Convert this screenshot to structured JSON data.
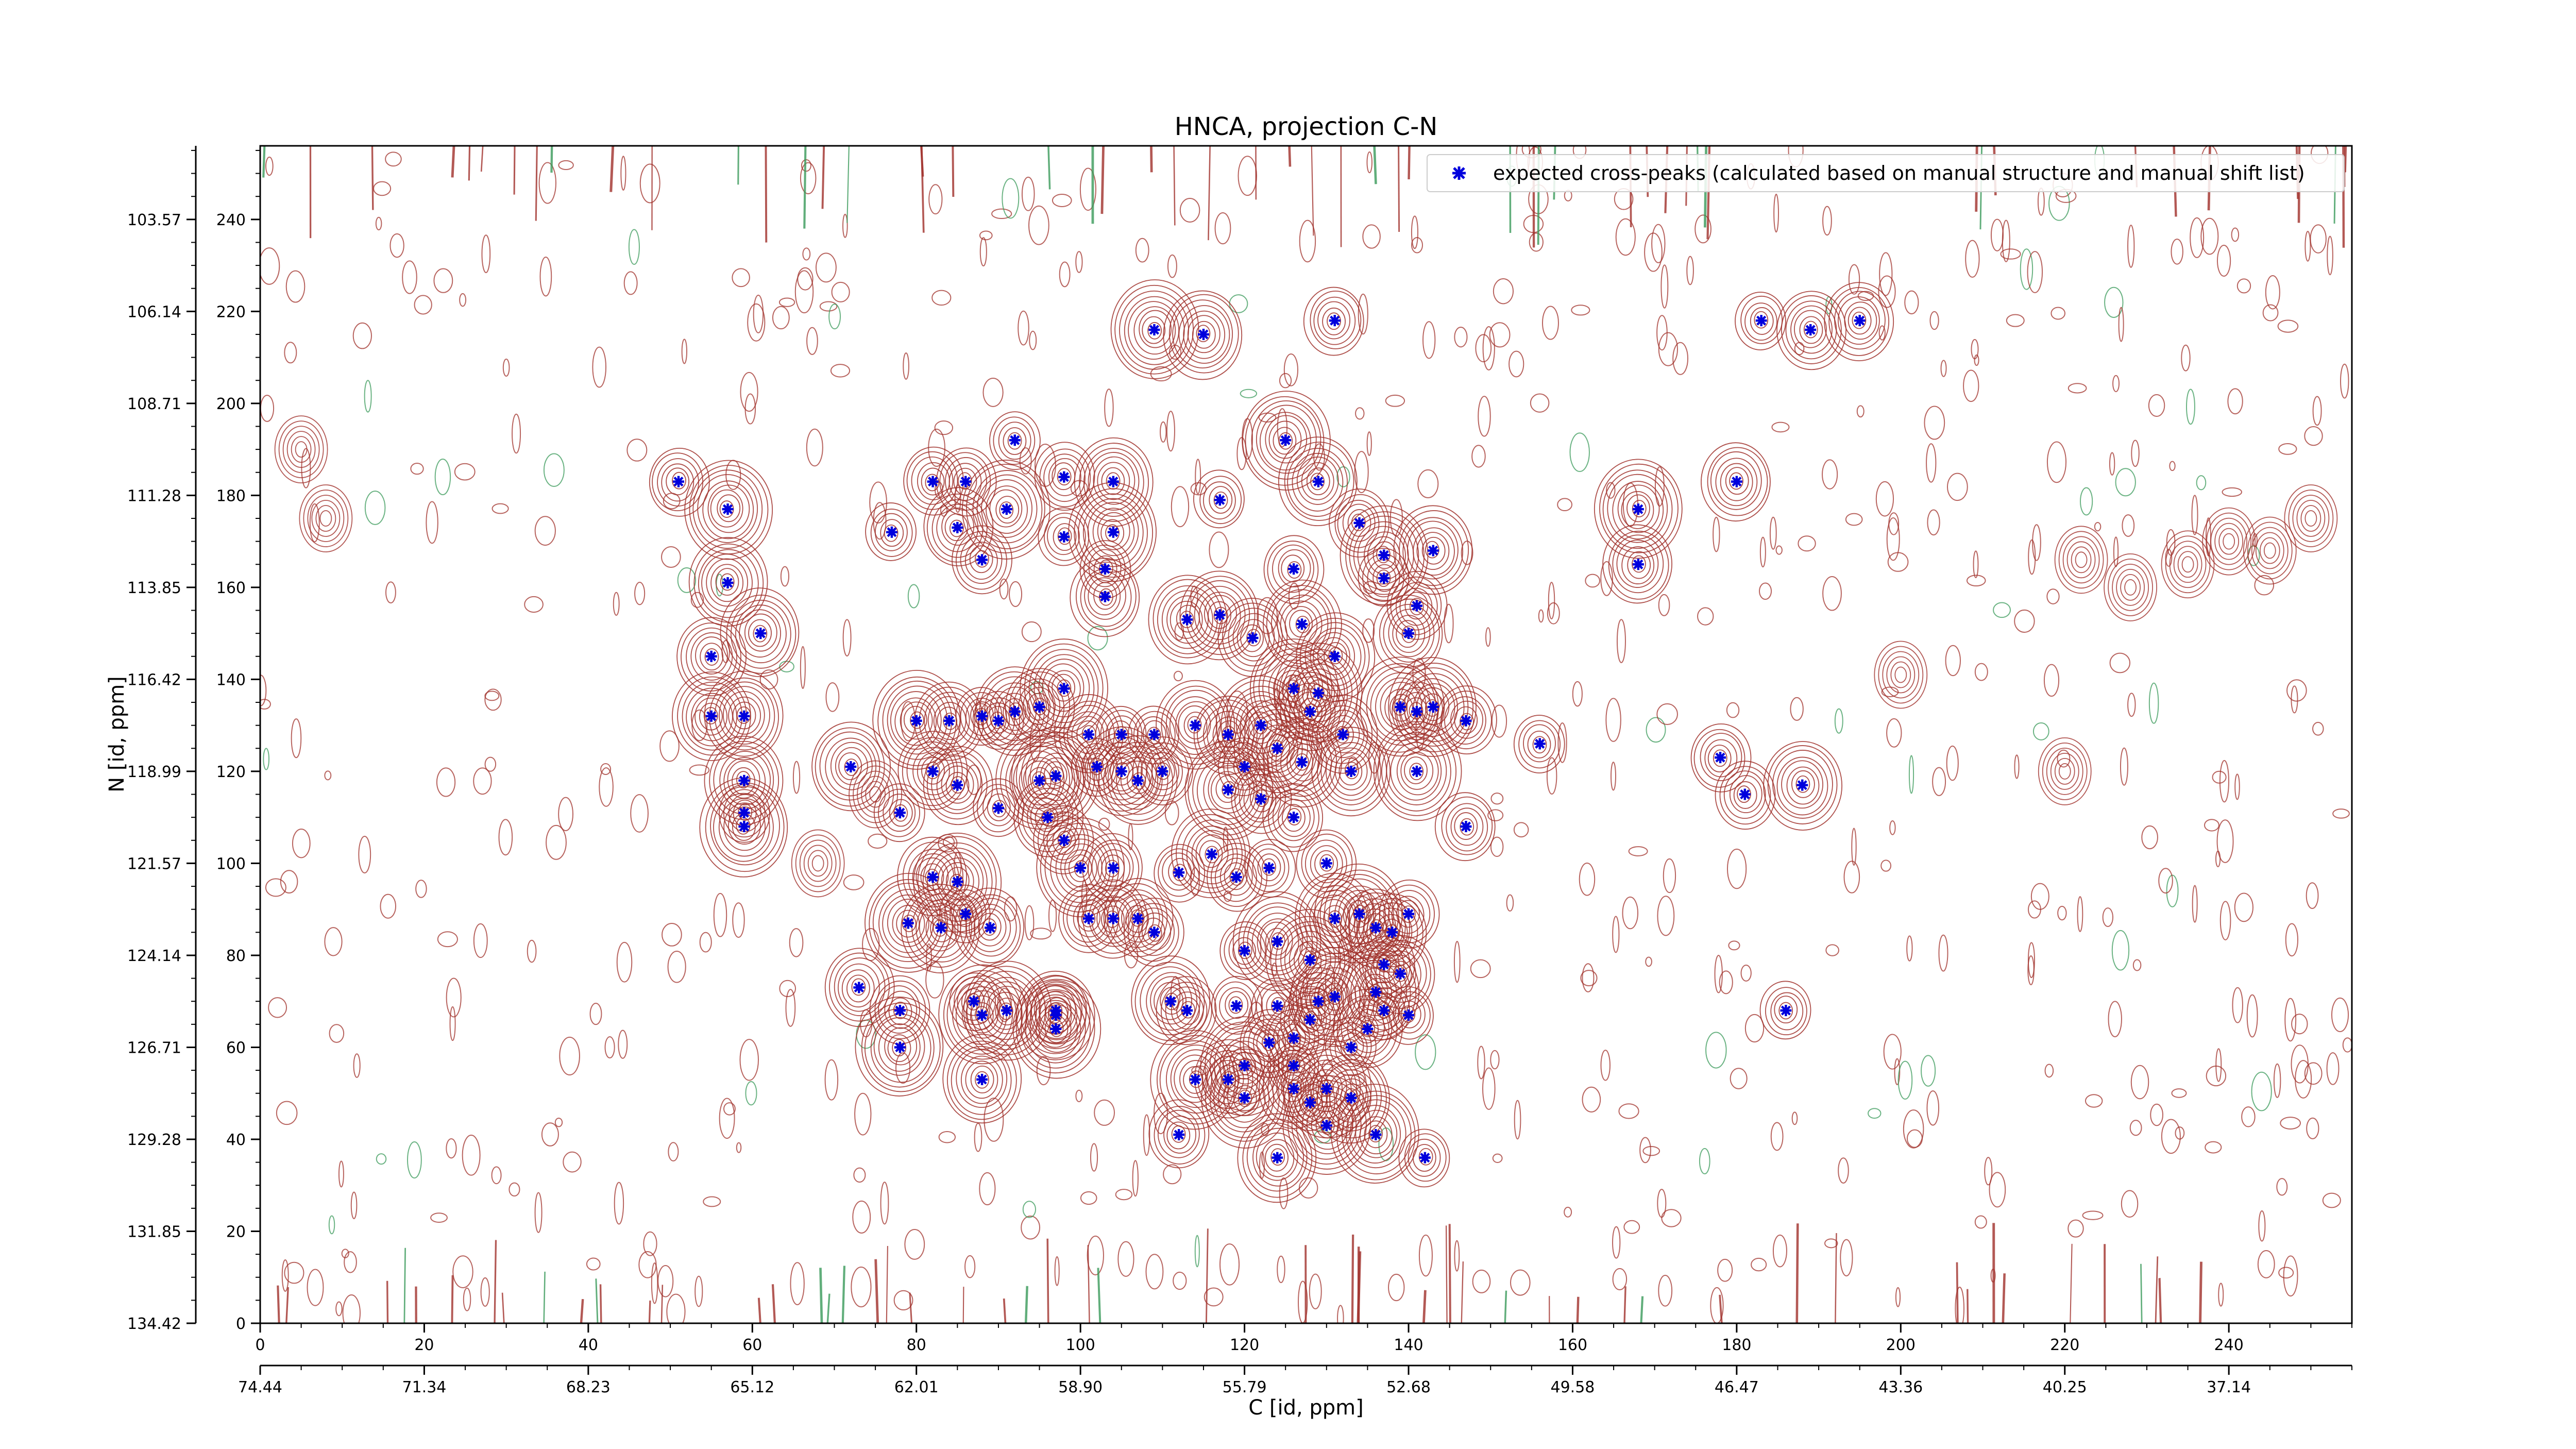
{
  "chart_data": {
    "type": "scatter",
    "title": "HNCA, projection C-N",
    "xlabel": "C [id, ppm]",
    "ylabel": "N [id, ppm]",
    "x_index_ticks": [
      0,
      20,
      40,
      60,
      80,
      100,
      120,
      140,
      160,
      180,
      200,
      220,
      240
    ],
    "x_ppm_ticks": [
      "74.44",
      "71.34",
      "68.23",
      "65.12",
      "62.01",
      "58.90",
      "55.79",
      "52.68",
      "49.58",
      "46.47",
      "43.36",
      "40.25",
      "37.14"
    ],
    "y_index_ticks": [
      0,
      20,
      40,
      60,
      80,
      100,
      120,
      140,
      160,
      180,
      200,
      220,
      240
    ],
    "y_ppm_ticks": [
      "134.42",
      "131.85",
      "129.28",
      "126.71",
      "124.14",
      "121.57",
      "118.99",
      "116.42",
      "113.85",
      "111.28",
      "108.71",
      "106.14",
      "103.57"
    ],
    "xlim": [
      0,
      255
    ],
    "ylim": [
      0,
      256
    ],
    "legend": {
      "label": "expected cross-peaks (calculated based on manual structure and manual shift list)",
      "placement": "top-right",
      "color": "#0000dd"
    },
    "colors": {
      "positive_contour": "#a0302a",
      "negative_contour": "#3a9a5a",
      "peak_marker": "#0000dd"
    },
    "series": [
      {
        "name": "expected cross-peaks (calculated based on manual structure and manual shift list)",
        "points": [
          [
            51,
            183
          ],
          [
            57,
            177
          ],
          [
            57,
            161
          ],
          [
            55,
            145
          ],
          [
            61,
            150
          ],
          [
            55,
            132
          ],
          [
            59,
            132
          ],
          [
            59,
            118
          ],
          [
            59,
            111
          ],
          [
            59,
            108
          ],
          [
            77,
            172
          ],
          [
            82,
            183
          ],
          [
            85,
            173
          ],
          [
            86,
            183
          ],
          [
            88,
            166
          ],
          [
            91,
            177
          ],
          [
            92,
            192
          ],
          [
            98,
            184
          ],
          [
            104,
            183
          ],
          [
            98,
            171
          ],
          [
            104,
            172
          ],
          [
            103,
            164
          ],
          [
            103,
            158
          ],
          [
            95,
            134
          ],
          [
            98,
            138
          ],
          [
            92,
            133
          ],
          [
            90,
            131
          ],
          [
            88,
            132
          ],
          [
            84,
            131
          ],
          [
            80,
            131
          ],
          [
            72,
            121
          ],
          [
            78,
            111
          ],
          [
            82,
            120
          ],
          [
            85,
            117
          ],
          [
            90,
            112
          ],
          [
            97,
            119
          ],
          [
            101,
            128
          ],
          [
            105,
            128
          ],
          [
            109,
            128
          ],
          [
            102,
            121
          ],
          [
            105,
            120
          ],
          [
            107,
            118
          ],
          [
            110,
            120
          ],
          [
            114,
            130
          ],
          [
            118,
            128
          ],
          [
            122,
            130
          ],
          [
            109,
            216
          ],
          [
            115,
            215
          ],
          [
            131,
            218
          ],
          [
            117,
            179
          ],
          [
            125,
            192
          ],
          [
            129,
            183
          ],
          [
            113,
            153
          ],
          [
            117,
            154
          ],
          [
            121,
            149
          ],
          [
            127,
            152
          ],
          [
            131,
            145
          ],
          [
            126,
            164
          ],
          [
            134,
            174
          ],
          [
            137,
            162
          ],
          [
            141,
            156
          ],
          [
            143,
            168
          ],
          [
            137,
            167
          ],
          [
            140,
            150
          ],
          [
            139,
            134
          ],
          [
            143,
            134
          ],
          [
            132,
            128
          ],
          [
            128,
            133
          ],
          [
            126,
            138
          ],
          [
            129,
            137
          ],
          [
            127,
            122
          ],
          [
            124,
            125
          ],
          [
            120,
            121
          ],
          [
            118,
            116
          ],
          [
            122,
            114
          ],
          [
            126,
            110
          ],
          [
            130,
            100
          ],
          [
            123,
            99
          ],
          [
            119,
            97
          ],
          [
            116,
            102
          ],
          [
            112,
            98
          ],
          [
            104,
            99
          ],
          [
            100,
            99
          ],
          [
            98,
            105
          ],
          [
            96,
            110
          ],
          [
            95,
            118
          ],
          [
            82,
            97
          ],
          [
            85,
            96
          ],
          [
            79,
            87
          ],
          [
            83,
            86
          ],
          [
            86,
            89
          ],
          [
            89,
            86
          ],
          [
            73,
            73
          ],
          [
            78,
            68
          ],
          [
            87,
            70
          ],
          [
            88,
            67
          ],
          [
            91,
            68
          ],
          [
            97,
            68
          ],
          [
            97,
            67
          ],
          [
            97,
            64
          ],
          [
            78,
            60
          ],
          [
            88,
            53
          ],
          [
            101,
            88
          ],
          [
            104,
            88
          ],
          [
            107,
            88
          ],
          [
            109,
            85
          ],
          [
            111,
            70
          ],
          [
            113,
            68
          ],
          [
            119,
            69
          ],
          [
            124,
            69
          ],
          [
            120,
            81
          ],
          [
            124,
            83
          ],
          [
            128,
            79
          ],
          [
            131,
            88
          ],
          [
            134,
            89
          ],
          [
            136,
            86
          ],
          [
            138,
            85
          ],
          [
            140,
            89
          ],
          [
            137,
            78
          ],
          [
            139,
            76
          ],
          [
            136,
            72
          ],
          [
            137,
            68
          ],
          [
            131,
            71
          ],
          [
            129,
            70
          ],
          [
            128,
            66
          ],
          [
            126,
            62
          ],
          [
            123,
            61
          ],
          [
            120,
            56
          ],
          [
            118,
            53
          ],
          [
            114,
            53
          ],
          [
            120,
            49
          ],
          [
            126,
            51
          ],
          [
            130,
            51
          ],
          [
            133,
            49
          ],
          [
            128,
            48
          ],
          [
            126,
            56
          ],
          [
            133,
            60
          ],
          [
            135,
            64
          ],
          [
            140,
            67
          ],
          [
            130,
            43
          ],
          [
            112,
            41
          ],
          [
            136,
            41
          ],
          [
            124,
            36
          ],
          [
            142,
            36
          ],
          [
            147,
            131
          ],
          [
            156,
            126
          ],
          [
            147,
            108
          ],
          [
            178,
            123
          ],
          [
            181,
            115
          ],
          [
            188,
            117
          ],
          [
            186,
            68
          ],
          [
            183,
            218
          ],
          [
            189,
            216
          ],
          [
            195,
            218
          ],
          [
            180,
            183
          ],
          [
            168,
            177
          ],
          [
            168,
            165
          ],
          [
            141,
            133
          ],
          [
            141,
            120
          ],
          [
            133,
            120
          ]
        ]
      }
    ]
  }
}
